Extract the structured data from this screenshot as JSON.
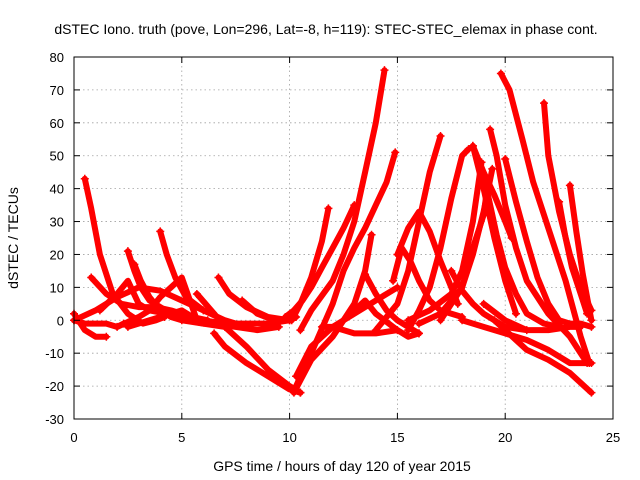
{
  "chart_data": {
    "type": "scatter",
    "title": "dSTEC Iono. truth (pove, Lon=296, Lat=-8, h=119): STEC-STEC_elemax in phase cont.",
    "xlabel": "GPS time / hours of day 120 of year 2015",
    "ylabel": "dSTEC  / TECUs",
    "xlim": [
      0,
      25
    ],
    "ylim": [
      -30,
      80
    ],
    "xticks": [
      0,
      5,
      10,
      15,
      20,
      25
    ],
    "yticks": [
      -30,
      -20,
      -10,
      0,
      10,
      20,
      30,
      40,
      50,
      60,
      70,
      80
    ],
    "grid": true,
    "legend": "none",
    "marker": "plus",
    "color": "#ff0000",
    "series": [
      {
        "x": [
          0.0,
          0.5,
          1.0,
          1.5
        ],
        "y": [
          2,
          -3,
          -5,
          -5
        ]
      },
      {
        "x": [
          0.0,
          0.5,
          1.0,
          1.5,
          2.0,
          2.3
        ],
        "y": [
          0,
          -1,
          -1,
          -1,
          -2,
          -1
        ]
      },
      {
        "x": [
          0.5,
          0.8,
          1.2,
          1.8,
          2.5,
          3.2,
          3.8,
          4.2
        ],
        "y": [
          43,
          34,
          20,
          8,
          2,
          -1,
          0,
          1
        ]
      },
      {
        "x": [
          0.8,
          1.5,
          2.2,
          3.0,
          3.8,
          4.5,
          5.0,
          5.5,
          6.2
        ],
        "y": [
          13,
          8,
          5,
          4,
          4,
          3,
          2,
          1,
          0
        ]
      },
      {
        "x": [
          0.0,
          1.0,
          2.0,
          3.0,
          4.0,
          5.0,
          6.0
        ],
        "y": [
          0,
          3,
          7,
          10,
          9,
          6,
          3
        ]
      },
      {
        "x": [
          2.5,
          2.8,
          3.1,
          3.5,
          4.0,
          4.5,
          5.2,
          6.0,
          7.0
        ],
        "y": [
          21,
          15,
          10,
          6,
          4,
          2,
          0,
          -1,
          -2
        ]
      },
      {
        "x": [
          1.2,
          2.0,
          2.5,
          3.0,
          3.5,
          4.3,
          5.0,
          6.0,
          7.0,
          8.0
        ],
        "y": [
          3,
          8,
          12,
          5,
          3,
          2,
          1,
          0,
          -1,
          -2
        ]
      },
      {
        "x": [
          2.8,
          3.1,
          3.5,
          4.0,
          4.5,
          5.0,
          5.8
        ],
        "y": [
          17,
          12,
          7,
          3,
          1,
          0,
          0
        ]
      },
      {
        "x": [
          2.0,
          3.0,
          3.5,
          4.0,
          4.5,
          5.0,
          5.7
        ],
        "y": [
          -2,
          1,
          3,
          7,
          10,
          13,
          0
        ]
      },
      {
        "x": [
          4.0,
          4.3,
          4.7,
          5.2,
          6.0,
          7.0,
          8.0
        ],
        "y": [
          27,
          20,
          13,
          7,
          3,
          0,
          -2
        ]
      },
      {
        "x": [
          2.5,
          3.5,
          4.5,
          5.0,
          5.5,
          6.5,
          7.5,
          8.5,
          9.5
        ],
        "y": [
          -2,
          0,
          2,
          3,
          1,
          -1,
          -2,
          -3,
          -2
        ]
      },
      {
        "x": [
          5.7,
          6.5,
          7.0,
          8.0,
          9.0,
          10.0,
          10.5
        ],
        "y": [
          8,
          2,
          -2,
          -8,
          -15,
          -20,
          -22
        ]
      },
      {
        "x": [
          6.5,
          7.0,
          8.0,
          9.0,
          10.0,
          10.5
        ],
        "y": [
          -4,
          -8,
          -13,
          -17,
          -21,
          -22
        ]
      },
      {
        "x": [
          6.7,
          7.2,
          8.0,
          9.0,
          10.0
        ],
        "y": [
          13,
          8,
          4,
          1,
          0
        ]
      },
      {
        "x": [
          7.8,
          8.5,
          9.3,
          10.0,
          10.3
        ],
        "y": [
          6,
          2,
          0,
          0,
          1
        ]
      },
      {
        "x": [
          5.0,
          6.0,
          7.0,
          8.0,
          9.0,
          10.0
        ],
        "y": [
          0,
          -1,
          -1,
          -1,
          -1,
          0
        ]
      },
      {
        "x": [
          9.8,
          10.2,
          10.6,
          11.0,
          11.5,
          12.0,
          12.5,
          13.0
        ],
        "y": [
          1,
          3,
          6,
          10,
          16,
          22,
          28,
          35
        ]
      },
      {
        "x": [
          10.1,
          10.5,
          11.0,
          11.5,
          11.8
        ],
        "y": [
          0,
          5,
          13,
          24,
          34
        ]
      },
      {
        "x": [
          10.5,
          11.0,
          12.0,
          12.5,
          13.0,
          13.5,
          14.0,
          14.4
        ],
        "y": [
          -3,
          3,
          12,
          20,
          30,
          45,
          60,
          76
        ]
      },
      {
        "x": [
          10.3,
          11.0,
          12.0,
          12.5,
          13.0,
          13.5,
          14.0,
          14.5,
          14.9
        ],
        "y": [
          -20,
          -10,
          5,
          15,
          22,
          28,
          35,
          42,
          51
        ]
      },
      {
        "x": [
          10.2,
          11.0,
          12.0,
          12.5,
          13.0,
          13.5,
          13.8
        ],
        "y": [
          -22,
          -12,
          -5,
          0,
          5,
          15,
          26
        ]
      },
      {
        "x": [
          10.3,
          11.0,
          12.0,
          13.0,
          13.5,
          14.0,
          14.5,
          15.0
        ],
        "y": [
          -17,
          -8,
          -2,
          2,
          4,
          6,
          8,
          10
        ]
      },
      {
        "x": [
          11.5,
          12.0,
          13.0,
          14.0,
          15.0
        ],
        "y": [
          -2,
          -2,
          -4,
          -4,
          -3
        ]
      },
      {
        "x": [
          12.5,
          13.0,
          13.5,
          14.0,
          15.0,
          15.5,
          16.0
        ],
        "y": [
          0,
          3,
          6,
          2,
          -3,
          -5,
          -4
        ]
      },
      {
        "x": [
          13.5,
          14.0,
          14.5,
          15.0,
          15.5,
          16.0
        ],
        "y": [
          14,
          8,
          3,
          0,
          -2,
          -4
        ]
      },
      {
        "x": [
          14.8,
          15.2,
          15.6,
          16.0,
          16.5,
          17.0,
          18.0
        ],
        "y": [
          12,
          22,
          18,
          12,
          6,
          3,
          1
        ]
      },
      {
        "x": [
          14.0,
          15.0,
          15.5,
          16.0,
          16.5,
          17.0
        ],
        "y": [
          -3,
          5,
          15,
          30,
          45,
          56
        ]
      },
      {
        "x": [
          15.0,
          15.5,
          16.0,
          16.5,
          17.0,
          17.5,
          17.8
        ],
        "y": [
          20,
          28,
          33,
          27,
          18,
          10,
          5
        ]
      },
      {
        "x": [
          15.5,
          16.0,
          16.5,
          17.0,
          17.5,
          18.0,
          18.3
        ],
        "y": [
          -3,
          3,
          10,
          22,
          37,
          50,
          52
        ]
      },
      {
        "x": [
          15.5,
          16.5,
          17.5,
          18.0,
          18.5,
          18.9
        ],
        "y": [
          0,
          3,
          8,
          15,
          30,
          48
        ]
      },
      {
        "x": [
          16.0,
          17.0,
          18.0,
          18.5,
          19.0,
          19.4
        ],
        "y": [
          -1,
          2,
          10,
          20,
          33,
          46
        ]
      },
      {
        "x": [
          17.0,
          18.0,
          18.5,
          19.0,
          19.2
        ],
        "y": [
          0,
          10,
          22,
          32,
          42
        ]
      },
      {
        "x": [
          18.5,
          19.0,
          19.5,
          20.0,
          20.5
        ],
        "y": [
          53,
          40,
          25,
          12,
          2
        ]
      },
      {
        "x": [
          18.8,
          19.2,
          19.6,
          20.0,
          20.5,
          21.0,
          21.8,
          22.5
        ],
        "y": [
          48,
          38,
          26,
          16,
          8,
          2,
          -1,
          -2
        ]
      },
      {
        "x": [
          17.5,
          18.0,
          18.5,
          19.0,
          19.5,
          20.0,
          21.0
        ],
        "y": [
          15,
          9,
          5,
          2,
          0,
          -2,
          -3
        ]
      },
      {
        "x": [
          18.5,
          19.0,
          19.5,
          20.0,
          20.3
        ],
        "y": [
          53,
          45,
          38,
          30,
          25
        ]
      },
      {
        "x": [
          19.3,
          19.6,
          20.0,
          20.5,
          21.0,
          22.0,
          23.0,
          23.8
        ],
        "y": [
          58,
          50,
          35,
          22,
          12,
          2,
          -5,
          -13
        ]
      },
      {
        "x": [
          19.8,
          20.2,
          20.8,
          21.3,
          22.0,
          22.8,
          23.5,
          23.9
        ],
        "y": [
          75,
          70,
          55,
          42,
          28,
          12,
          -5,
          -13
        ]
      },
      {
        "x": [
          20.0,
          20.5,
          21.0,
          21.5,
          22.0,
          22.5,
          23.0,
          23.5,
          24.0
        ],
        "y": [
          49,
          36,
          24,
          13,
          5,
          0,
          -1,
          -1,
          -2
        ]
      },
      {
        "x": [
          19.0,
          20.0,
          21.0,
          22.0,
          23.0,
          23.5
        ],
        "y": [
          5,
          0,
          -3,
          -3,
          -2,
          -2
        ]
      },
      {
        "x": [
          19.5,
          20.0,
          20.5,
          21.0,
          22.0,
          23.0,
          24.0
        ],
        "y": [
          0,
          -3,
          -6,
          -9,
          -12,
          -16,
          -22
        ]
      },
      {
        "x": [
          21.8,
          22.0,
          22.5,
          23.0,
          23.5,
          24.0
        ],
        "y": [
          66,
          50,
          33,
          20,
          10,
          3
        ]
      },
      {
        "x": [
          22.5,
          22.8,
          23.1,
          23.5,
          23.8
        ],
        "y": [
          36,
          25,
          16,
          8,
          2
        ]
      },
      {
        "x": [
          23.0,
          23.3,
          23.6,
          24.0
        ],
        "y": [
          41,
          27,
          14,
          0
        ]
      },
      {
        "x": [
          18.0,
          19.0,
          20.0,
          21.0,
          22.0,
          23.0,
          24.0
        ],
        "y": [
          0,
          -2,
          -4,
          -6,
          -9,
          -13,
          -13
        ]
      }
    ]
  }
}
